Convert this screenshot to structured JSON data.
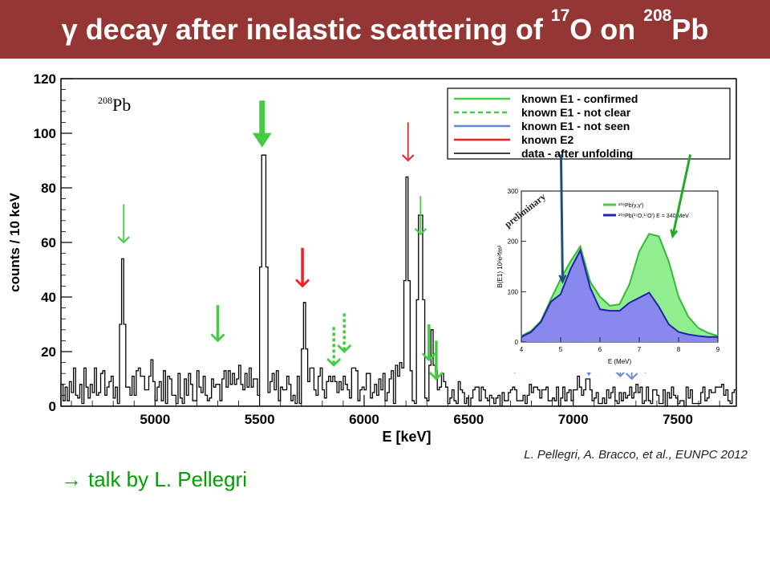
{
  "slide": {
    "title_symbol": "γ",
    "title_part1": " decay after inelastic scattering of ",
    "title_sup1": "17",
    "title_part2": "O on ",
    "title_sup2": "208",
    "title_part3": "Pb",
    "citation": "L. Pellegri, A. Bracco, et al., EUNPC 2012",
    "talk_arrow": "→",
    "talk_text": "talk by L. Pellegri"
  },
  "colors": {
    "title_bar": "#943634",
    "confirmed": "#44cc44",
    "not_clear": "#44cc44",
    "not_seen": "#6688cc",
    "e2": "#ee2222",
    "data": "#000000",
    "inset_fill_green": "#90ee90",
    "inset_fill_blue": "#8888ee",
    "inset_arrow_blue": "#1f4e79",
    "inset_arrow_green": "#22aa22",
    "talk_text": "#00a000"
  },
  "chart_data": [
    {
      "type": "line",
      "panel_label_sup": "208",
      "panel_label": "Pb",
      "xlabel": "E [keV]",
      "ylabel": "counts  / 10 keV",
      "xlim": [
        4550,
        7780
      ],
      "ylim": [
        0,
        120
      ],
      "x_ticks": [
        5000,
        5500,
        6000,
        6500,
        7000,
        7500
      ],
      "y_ticks": [
        0,
        20,
        40,
        60,
        80,
        100,
        120
      ],
      "legend": {
        "placement": "top-right",
        "entries": [
          {
            "label": "known E1 - confirmed",
            "style": "solid",
            "color": "#44cc44"
          },
          {
            "label": "known E1 - not clear",
            "style": "dashed",
            "color": "#44cc44"
          },
          {
            "label": "known E1 - not seen",
            "style": "solid",
            "color": "#6688cc"
          },
          {
            "label": "known E2",
            "style": "solid",
            "color": "#ee2222"
          },
          {
            "label": "data - after unfolding",
            "style": "solid",
            "color": "#000000"
          }
        ]
      },
      "peaks": [
        {
          "x": 4843,
          "y": 54
        },
        {
          "x": 5515,
          "y": 92
        },
        {
          "x": 5710,
          "y": 38
        },
        {
          "x": 6200,
          "y": 84
        },
        {
          "x": 6265,
          "y": 70
        },
        {
          "x": 6320,
          "y": 28
        },
        {
          "x": 7065,
          "y": 10
        }
      ],
      "background_level": 7,
      "arrows": [
        {
          "x": 4850,
          "y_top": 74,
          "y_bottom": 60,
          "kind": "confirmed",
          "size": "thin"
        },
        {
          "x": 5300,
          "y_top": 37,
          "y_bottom": 24,
          "kind": "confirmed",
          "size": "medium"
        },
        {
          "x": 5512,
          "y_top": 112,
          "y_bottom": 96,
          "kind": "confirmed",
          "size": "bold"
        },
        {
          "x": 5705,
          "y_top": 58,
          "y_bottom": 44,
          "kind": "e2",
          "size": "medium"
        },
        {
          "x": 5855,
          "y_top": 29,
          "y_bottom": 15,
          "kind": "not_clear",
          "size": "medium"
        },
        {
          "x": 5905,
          "y_top": 34,
          "y_bottom": 20,
          "kind": "not_clear",
          "size": "medium"
        },
        {
          "x": 6210,
          "y_top": 104,
          "y_bottom": 90,
          "kind": "e2",
          "size": "thin"
        },
        {
          "x": 6270,
          "y_top": 77,
          "y_bottom": 63,
          "kind": "confirmed",
          "size": "thin"
        },
        {
          "x": 6310,
          "y_top": 30,
          "y_bottom": 17,
          "kind": "confirmed",
          "size": "medium"
        },
        {
          "x": 6345,
          "y_top": 24,
          "y_bottom": 10,
          "kind": "confirmed",
          "size": "medium"
        },
        {
          "x": 6720,
          "y_top": 16,
          "y_bottom": 12,
          "kind": "confirmed",
          "size": "head"
        },
        {
          "x": 7075,
          "y_top": 16,
          "y_bottom": 11,
          "kind": "not_seen",
          "size": "head"
        },
        {
          "x": 7225,
          "y_top": 17,
          "y_bottom": 11,
          "kind": "not_seen",
          "size": "thin"
        },
        {
          "x": 7280,
          "y_top": 17,
          "y_bottom": 10,
          "kind": "not_seen",
          "size": "thin"
        },
        {
          "x": 7345,
          "y_top": 16,
          "y_bottom": 12,
          "kind": "confirmed",
          "size": "head"
        }
      ]
    },
    {
      "type": "area",
      "annotation": "preliminary",
      "xlabel": "E (MeV)",
      "ylabel": "B(E1) 10³e²fm²",
      "xlim": [
        4,
        9
      ],
      "ylim": [
        0,
        300
      ],
      "x_ticks": [
        4,
        5,
        6,
        7,
        8,
        9
      ],
      "y_ticks": [
        0,
        100,
        200,
        300
      ],
      "legend": {
        "placement": "top-right",
        "entries": [
          {
            "label": "²⁰⁸Pb(γ,γ')",
            "color": "#44cc44"
          },
          {
            "label": "²⁰⁸Pb(¹⁷O,¹⁷O') E = 340 MeV",
            "color": "#2222aa"
          }
        ]
      },
      "series": [
        {
          "name": "²⁰⁸Pb(γ,γ')",
          "x": [
            4.0,
            4.25,
            4.5,
            4.75,
            5.0,
            5.25,
            5.5,
            5.75,
            6.0,
            6.25,
            6.5,
            6.75,
            7.0,
            7.25,
            7.5,
            7.75,
            8.0,
            8.25,
            8.5,
            8.75,
            9.0
          ],
          "y": [
            12,
            22,
            42,
            85,
            125,
            160,
            190,
            120,
            90,
            72,
            75,
            115,
            180,
            215,
            210,
            160,
            90,
            50,
            28,
            18,
            12
          ]
        },
        {
          "name": "²⁰⁸Pb(¹⁷O,¹⁷O') E = 340 MeV",
          "x": [
            4.0,
            4.25,
            4.5,
            4.75,
            5.0,
            5.25,
            5.5,
            5.75,
            6.0,
            6.25,
            6.5,
            6.75,
            7.0,
            7.25,
            7.5,
            7.75,
            8.0,
            8.25,
            8.5,
            8.75,
            9.0
          ],
          "y": [
            10,
            20,
            40,
            80,
            95,
            145,
            182,
            108,
            65,
            62,
            62,
            78,
            88,
            98,
            70,
            35,
            20,
            15,
            12,
            10,
            10
          ]
        }
      ],
      "arrows": [
        {
          "x": 5.05,
          "y_top": 360,
          "y_bottom": 120,
          "color": "#1f4e79"
        },
        {
          "x": 7.85,
          "y_top": 360,
          "y_bottom": 210,
          "color": "#22aa22"
        }
      ]
    }
  ]
}
